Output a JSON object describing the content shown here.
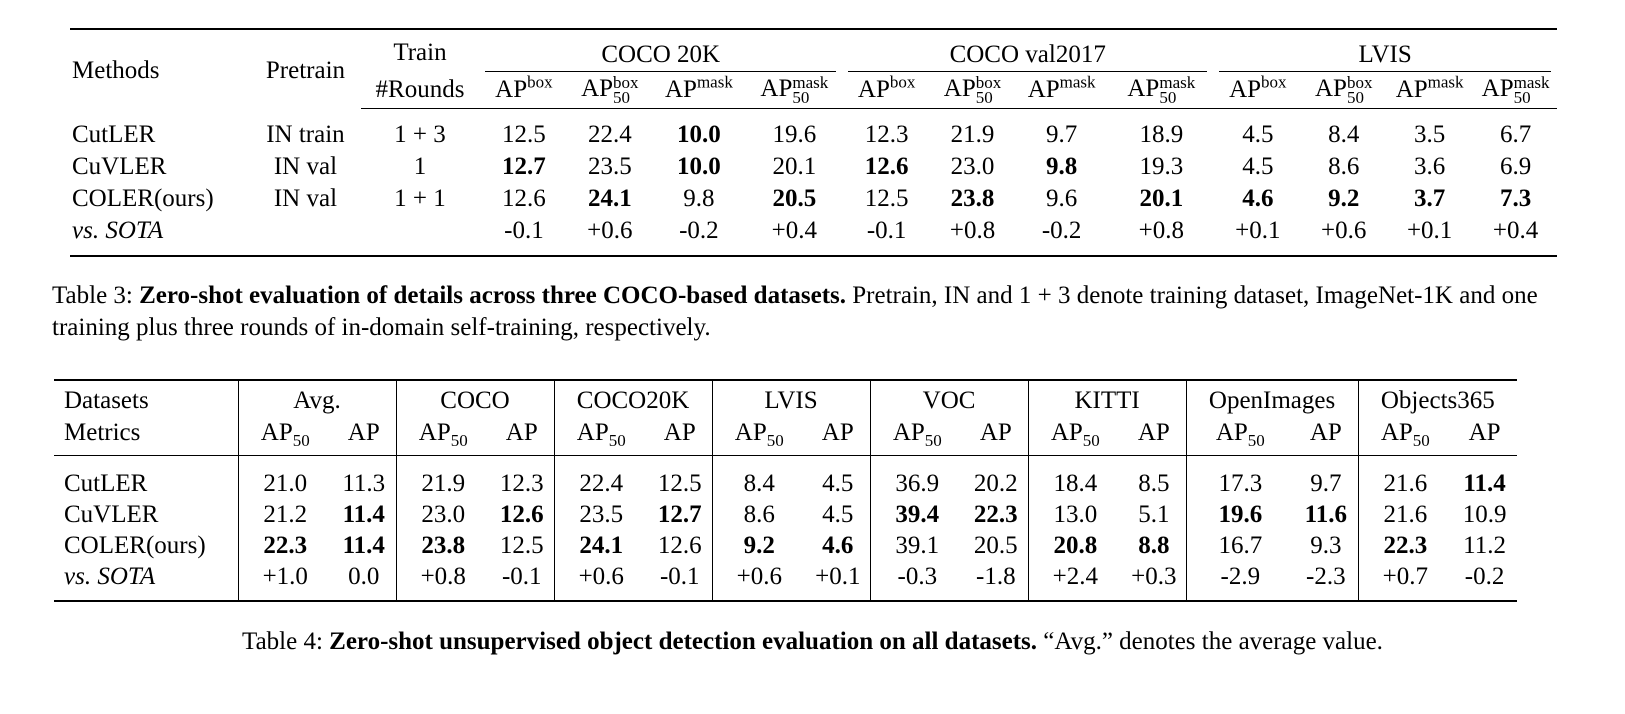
{
  "table3": {
    "headers": {
      "methods": "Methods",
      "pretrain": "Pretrain",
      "train_line1": "Train",
      "train_line2": "#Rounds",
      "groups": [
        "COCO 20K",
        "COCO val2017",
        "LVIS"
      ],
      "metric_base": "AP",
      "metric_sup": [
        "box",
        "box",
        "mask",
        "mask"
      ],
      "metric_sub": [
        "",
        "50",
        "",
        "50"
      ]
    },
    "rows": [
      {
        "method": "CutLER",
        "pretrain": "IN train",
        "rounds": "1 + 3",
        "values": [
          "12.5",
          "22.4",
          "10.0",
          "19.6",
          "12.3",
          "21.9",
          "9.7",
          "18.9",
          "4.5",
          "8.4",
          "3.5",
          "6.7"
        ],
        "bold": [
          false,
          false,
          true,
          false,
          false,
          false,
          false,
          false,
          false,
          false,
          false,
          false
        ]
      },
      {
        "method": "CuVLER",
        "pretrain": "IN val",
        "rounds": "1",
        "values": [
          "12.7",
          "23.5",
          "10.0",
          "20.1",
          "12.6",
          "23.0",
          "9.8",
          "19.3",
          "4.5",
          "8.6",
          "3.6",
          "6.9"
        ],
        "bold": [
          true,
          false,
          true,
          false,
          true,
          false,
          true,
          false,
          false,
          false,
          false,
          false
        ]
      },
      {
        "method": "COLER(ours)",
        "pretrain": "IN val",
        "rounds": "1 + 1",
        "values": [
          "12.6",
          "24.1",
          "9.8",
          "20.5",
          "12.5",
          "23.8",
          "9.6",
          "20.1",
          "4.6",
          "9.2",
          "3.7",
          "7.3"
        ],
        "bold": [
          false,
          true,
          false,
          true,
          false,
          true,
          false,
          true,
          true,
          true,
          true,
          true
        ]
      },
      {
        "method": "vs. SOTA",
        "pretrain": "",
        "rounds": "",
        "italic": true,
        "values": [
          "-0.1",
          "+0.6",
          "-0.2",
          "+0.4",
          "-0.1",
          "+0.8",
          "-0.2",
          "+0.8",
          "+0.1",
          "+0.6",
          "+0.1",
          "+0.4"
        ],
        "bold": [
          false,
          false,
          false,
          false,
          false,
          false,
          false,
          false,
          false,
          false,
          false,
          false
        ]
      }
    ],
    "caption": {
      "label": "Table 3: ",
      "bold": "Zero-shot evaluation of details across three COCO-based datasets.",
      "rest": " Pretrain, IN and 1 + 3 denote training dataset, ImageNet-1K and one training plus three rounds of in-domain self-training, respectively."
    }
  },
  "table4": {
    "row_head1": "Datasets",
    "row_head2": "Metrics",
    "groups": [
      "Avg.",
      "COCO",
      "COCO20K",
      "LVIS",
      "VOC",
      "KITTI",
      "OpenImages",
      "Objects365"
    ],
    "metric1_base": "AP",
    "metric1_sub": "50",
    "metric2": "AP",
    "rows": [
      {
        "method": "CutLER",
        "values": [
          "21.0",
          "11.3",
          "21.9",
          "12.3",
          "22.4",
          "12.5",
          "8.4",
          "4.5",
          "36.9",
          "20.2",
          "18.4",
          "8.5",
          "17.3",
          "9.7",
          "21.6",
          "11.4"
        ],
        "bold": [
          false,
          false,
          false,
          false,
          false,
          false,
          false,
          false,
          false,
          false,
          false,
          false,
          false,
          false,
          false,
          true
        ]
      },
      {
        "method": "CuVLER",
        "values": [
          "21.2",
          "11.4",
          "23.0",
          "12.6",
          "23.5",
          "12.7",
          "8.6",
          "4.5",
          "39.4",
          "22.3",
          "13.0",
          "5.1",
          "19.6",
          "11.6",
          "21.6",
          "10.9"
        ],
        "bold": [
          false,
          true,
          false,
          true,
          false,
          true,
          false,
          false,
          true,
          true,
          false,
          false,
          true,
          true,
          false,
          false
        ]
      },
      {
        "method": "COLER(ours)",
        "values": [
          "22.3",
          "11.4",
          "23.8",
          "12.5",
          "24.1",
          "12.6",
          "9.2",
          "4.6",
          "39.1",
          "20.5",
          "20.8",
          "8.8",
          "16.7",
          "9.3",
          "22.3",
          "11.2"
        ],
        "bold": [
          true,
          true,
          true,
          false,
          true,
          false,
          true,
          true,
          false,
          false,
          true,
          true,
          false,
          false,
          true,
          false
        ]
      },
      {
        "method": "vs. SOTA",
        "italic": true,
        "values": [
          "+1.0",
          "0.0",
          "+0.8",
          "-0.1",
          "+0.6",
          "-0.1",
          "+0.6",
          "+0.1",
          "-0.3",
          "-1.8",
          "+2.4",
          "+0.3",
          "-2.9",
          "-2.3",
          "+0.7",
          "-0.2"
        ],
        "bold": [
          false,
          false,
          false,
          false,
          false,
          false,
          false,
          false,
          false,
          false,
          false,
          false,
          false,
          false,
          false,
          false
        ]
      }
    ],
    "caption": {
      "label": "Table 4: ",
      "bold": "Zero-shot unsupervised object detection evaluation on all datasets.",
      "rest": " “Avg.” denotes the average value."
    }
  }
}
